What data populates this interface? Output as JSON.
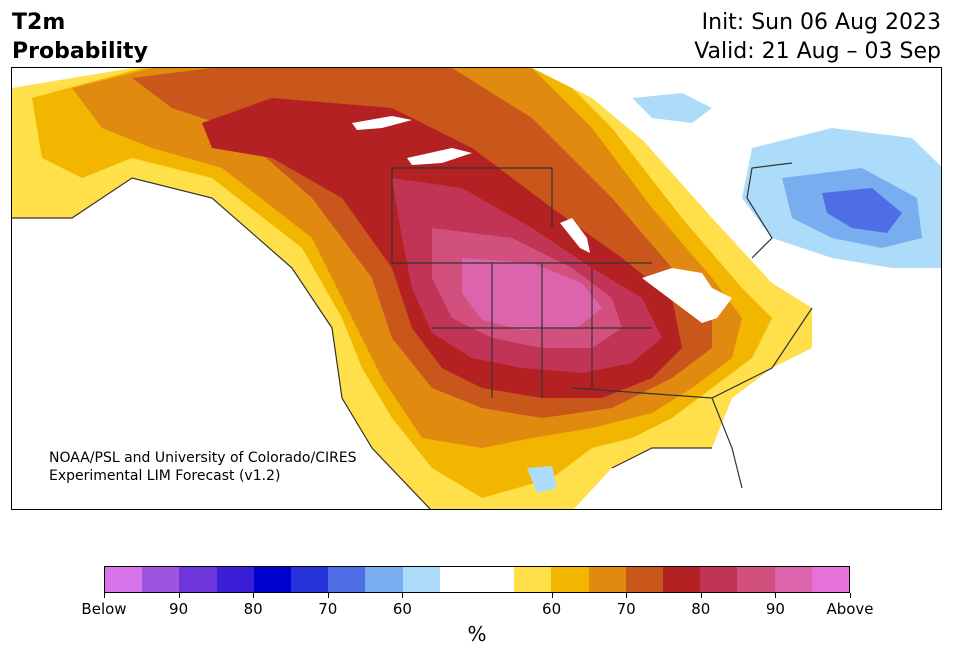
{
  "header": {
    "title_line1": "T2m",
    "title_line2": "Probability",
    "init": "Init: Sun 06 Aug 2023",
    "valid": "Valid: 21 Aug – 03 Sep"
  },
  "credit": {
    "line1": "NOAA/PSL and University of Colorado/CIRES",
    "line2": "Experimental LIM Forecast (v1.2)"
  },
  "colorbar": {
    "colors": [
      "#d774ea",
      "#9d55e0",
      "#6e36da",
      "#3a1fd7",
      "#0000cc",
      "#2633da",
      "#4f6ee6",
      "#78aef0",
      "#addcfa",
      "#ffffff",
      "#ffffff",
      "#ffe04a",
      "#f2b600",
      "#e08a10",
      "#c9561a",
      "#b42123",
      "#c23456",
      "#d1507e",
      "#dc64ad",
      "#e672d9"
    ],
    "tick_labels": [
      "Below",
      "90",
      "80",
      "70",
      "60",
      "60",
      "70",
      "80",
      "90",
      "Above"
    ],
    "unit": "%"
  }
}
